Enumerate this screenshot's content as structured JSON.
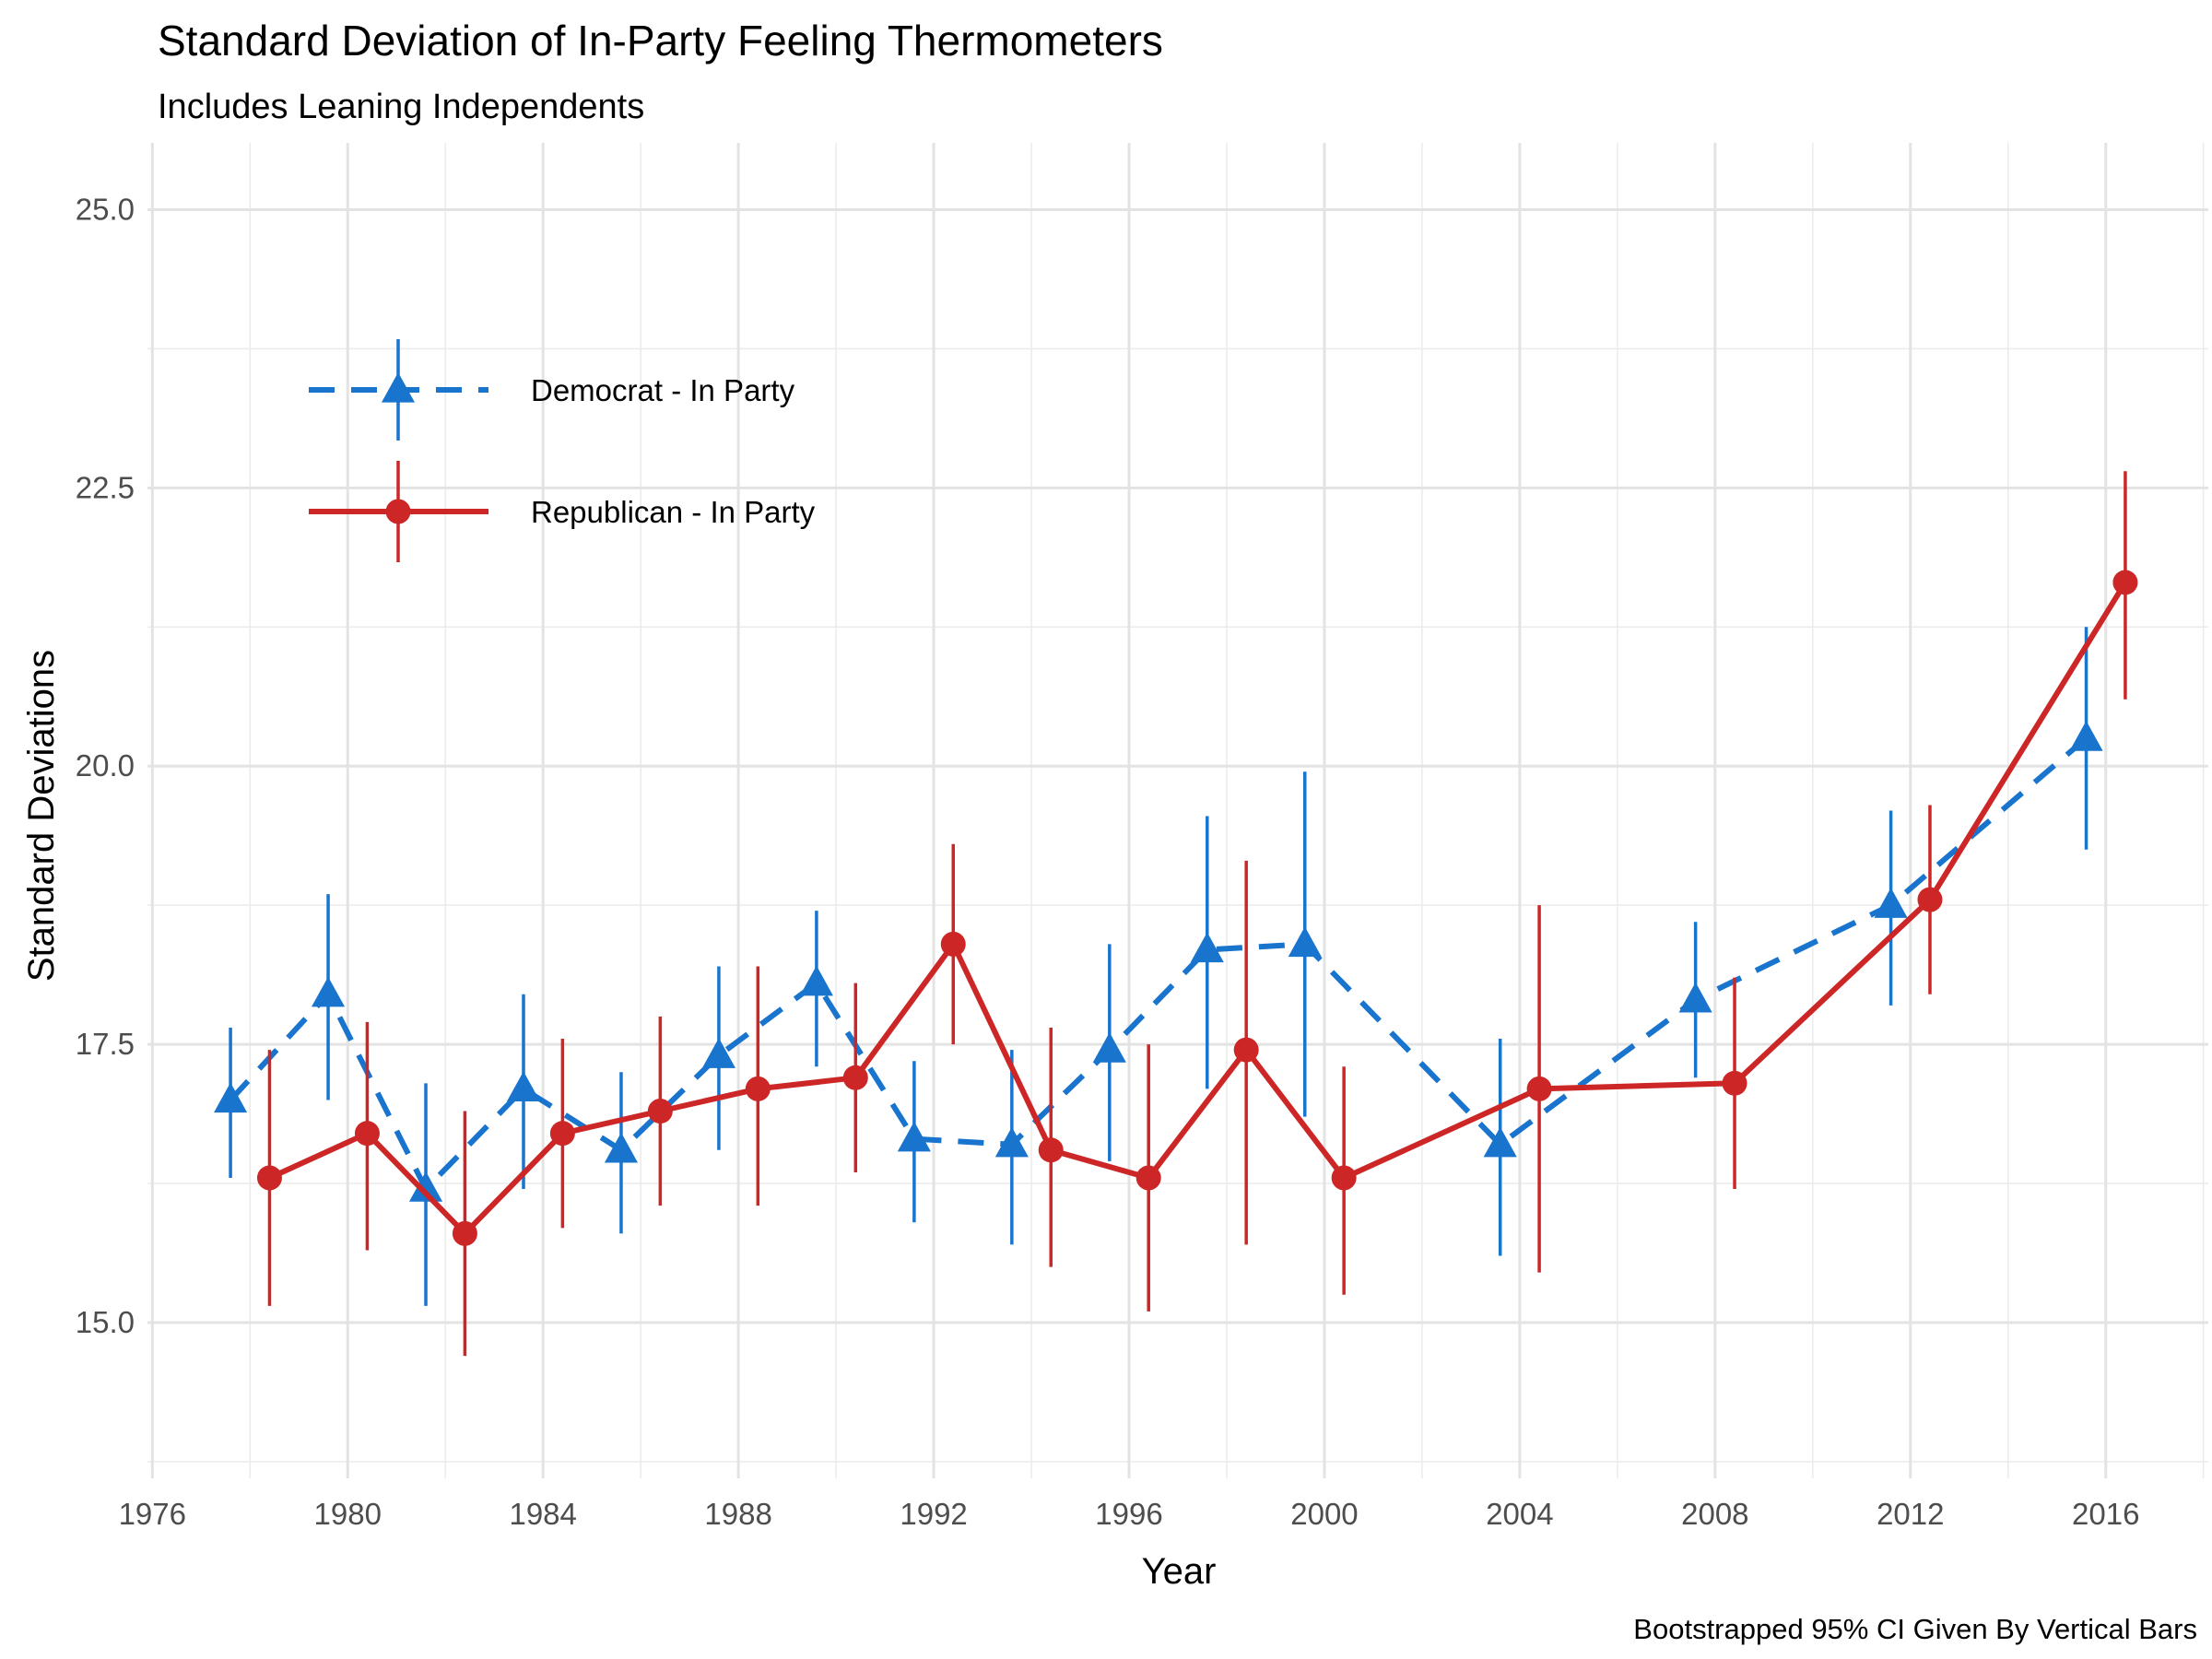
{
  "chart_data": {
    "type": "line",
    "title": "Standard Deviation of In-Party Feeling Thermometers",
    "subtitle": "Includes Leaning Independents",
    "xlabel": "Year",
    "ylabel": "Standard Deviations",
    "caption": "Bootstrapped 95% CI Given By Vertical Bars",
    "xlim": [
      1975.9,
      2018.1
    ],
    "ylim": [
      13.6,
      25.6
    ],
    "x_ticks": [
      1976,
      1980,
      1984,
      1988,
      1992,
      1996,
      2000,
      2004,
      2008,
      2012,
      2016
    ],
    "x_tick_labels": [
      "1976",
      "1980",
      "1984",
      "1988",
      "1992",
      "1996",
      "2000",
      "2004",
      "2008",
      "2012",
      "2016"
    ],
    "y_ticks": [
      15.0,
      17.5,
      20.0,
      22.5,
      25.0
    ],
    "y_tick_labels": [
      "15.0",
      "17.5",
      "20.0",
      "22.5",
      "25.0"
    ],
    "grid": true,
    "legend_position": "top-left",
    "series": [
      {
        "name": "Democrat - In Party",
        "color": "#1874CD",
        "line": "dashed",
        "marker": "triangle",
        "points": [
          {
            "x": 1978,
            "y": 17.0,
            "lo": 16.3,
            "hi": 17.65
          },
          {
            "x": 1980,
            "y": 17.95,
            "lo": 17.0,
            "hi": 18.85
          },
          {
            "x": 1982,
            "y": 16.2,
            "lo": 15.15,
            "hi": 17.15
          },
          {
            "x": 1984,
            "y": 17.1,
            "lo": 16.2,
            "hi": 17.95
          },
          {
            "x": 1986,
            "y": 16.55,
            "lo": 15.8,
            "hi": 17.25
          },
          {
            "x": 1988,
            "y": 17.4,
            "lo": 16.55,
            "hi": 18.2
          },
          {
            "x": 1990,
            "y": 18.05,
            "lo": 17.3,
            "hi": 18.7
          },
          {
            "x": 1992,
            "y": 16.65,
            "lo": 15.9,
            "hi": 17.35
          },
          {
            "x": 1994,
            "y": 16.6,
            "lo": 15.7,
            "hi": 17.45
          },
          {
            "x": 1996,
            "y": 17.45,
            "lo": 16.45,
            "hi": 18.4
          },
          {
            "x": 1998,
            "y": 18.35,
            "lo": 17.1,
            "hi": 19.55
          },
          {
            "x": 2000,
            "y": 18.4,
            "lo": 16.85,
            "hi": 19.95
          },
          {
            "x": 2004,
            "y": 16.6,
            "lo": 15.6,
            "hi": 17.55
          },
          {
            "x": 2008,
            "y": 17.9,
            "lo": 17.2,
            "hi": 18.6
          },
          {
            "x": 2012,
            "y": 18.75,
            "lo": 17.85,
            "hi": 19.6
          },
          {
            "x": 2016,
            "y": 20.25,
            "lo": 19.25,
            "hi": 21.25
          }
        ]
      },
      {
        "name": "Republican - In Party",
        "color": "#CD2626",
        "line": "solid",
        "marker": "circle",
        "points": [
          {
            "x": 1978,
            "y": 16.3,
            "lo": 15.15,
            "hi": 17.45
          },
          {
            "x": 1980,
            "y": 16.7,
            "lo": 15.65,
            "hi": 17.7
          },
          {
            "x": 1982,
            "y": 15.8,
            "lo": 14.7,
            "hi": 16.9
          },
          {
            "x": 1984,
            "y": 16.7,
            "lo": 15.85,
            "hi": 17.55
          },
          {
            "x": 1986,
            "y": 16.9,
            "lo": 16.05,
            "hi": 17.75
          },
          {
            "x": 1988,
            "y": 17.1,
            "lo": 16.05,
            "hi": 18.2
          },
          {
            "x": 1990,
            "y": 17.2,
            "lo": 16.35,
            "hi": 18.05
          },
          {
            "x": 1992,
            "y": 18.4,
            "lo": 17.5,
            "hi": 19.3
          },
          {
            "x": 1994,
            "y": 16.55,
            "lo": 15.5,
            "hi": 17.65
          },
          {
            "x": 1996,
            "y": 16.3,
            "lo": 15.1,
            "hi": 17.5
          },
          {
            "x": 1998,
            "y": 17.45,
            "lo": 15.7,
            "hi": 19.15
          },
          {
            "x": 2000,
            "y": 16.3,
            "lo": 15.25,
            "hi": 17.3
          },
          {
            "x": 2004,
            "y": 17.1,
            "lo": 15.45,
            "hi": 18.75
          },
          {
            "x": 2008,
            "y": 17.15,
            "lo": 16.2,
            "hi": 18.1
          },
          {
            "x": 2012,
            "y": 18.8,
            "lo": 17.95,
            "hi": 19.65
          },
          {
            "x": 2016,
            "y": 21.65,
            "lo": 20.6,
            "hi": 22.65
          }
        ]
      }
    ]
  }
}
